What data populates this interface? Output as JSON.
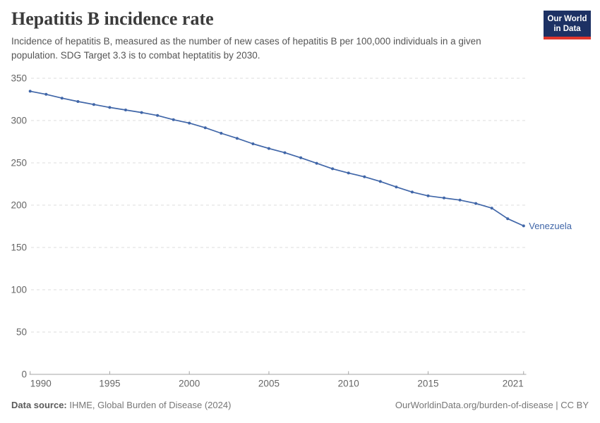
{
  "header": {
    "title": "Hepatitis B incidence rate",
    "subtitle": "Incidence of hepatitis B, measured as the number of new cases of hepatitis B per 100,000 individuals in a given population. SDG Target 3.3 is to combat heptatitis by 2030.",
    "logo": {
      "line1": "Our World",
      "line2": "in Data",
      "bg_color": "#1d3164",
      "accent_color": "#e0362d"
    }
  },
  "chart_data": {
    "type": "line",
    "title": "Hepatitis B incidence rate",
    "xlabel": "",
    "ylabel": "",
    "xlim": [
      1990,
      2021
    ],
    "ylim": [
      0,
      350
    ],
    "x_ticks": [
      1990,
      1995,
      2000,
      2005,
      2010,
      2015,
      2021
    ],
    "y_ticks": [
      0,
      50,
      100,
      150,
      200,
      250,
      300,
      350
    ],
    "grid": "horizontal-dashed",
    "legend": "entity label at line end",
    "series": [
      {
        "name": "Venezuela",
        "color": "#4066a8",
        "x": [
          1990,
          1991,
          1992,
          1993,
          1994,
          1995,
          1996,
          1997,
          1998,
          1999,
          2000,
          2001,
          2002,
          2003,
          2004,
          2005,
          2006,
          2007,
          2008,
          2009,
          2010,
          2011,
          2012,
          2013,
          2014,
          2015,
          2016,
          2017,
          2018,
          2019,
          2020,
          2021
        ],
        "values": [
          334.7,
          331.0,
          326.5,
          322.5,
          319.0,
          315.5,
          312.5,
          309.5,
          306.0,
          301.0,
          297.0,
          291.5,
          285.0,
          279.0,
          272.5,
          267.0,
          262.0,
          256.0,
          249.5,
          243.0,
          238.0,
          233.5,
          228.0,
          221.5,
          215.5,
          211.0,
          208.5,
          206.0,
          202.0,
          196.5,
          184.0,
          175.5
        ]
      }
    ],
    "colors": {
      "grid": "#dedede",
      "axis": "#a5a5a5",
      "tick_text": "#666666"
    }
  },
  "footer": {
    "source_label": "Data source:",
    "source_value": "IHME, Global Burden of Disease (2024)",
    "credit": "OurWorldinData.org/burden-of-disease | CC BY"
  }
}
